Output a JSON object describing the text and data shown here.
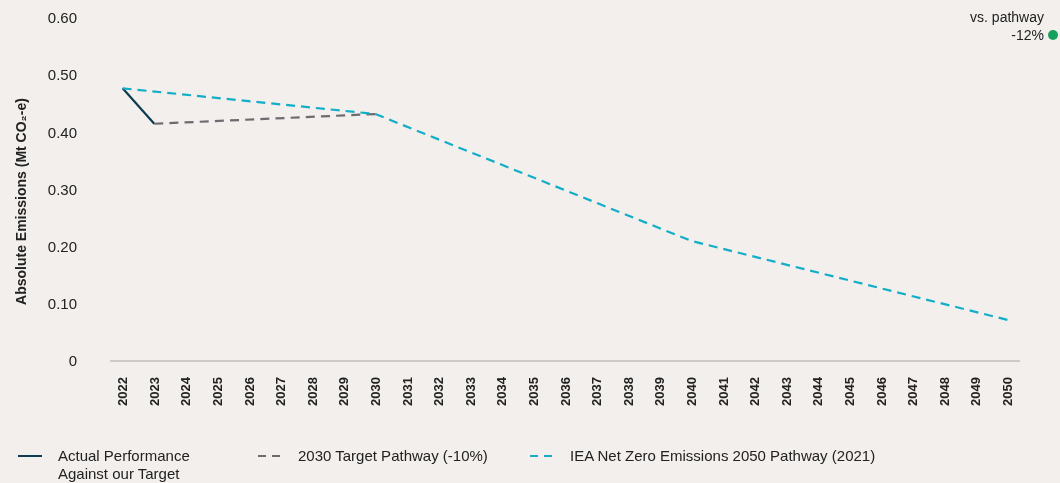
{
  "chart_data": {
    "type": "line",
    "ylabel": "Absolute Emissions (Mt CO₂-e)",
    "xlim": [
      2021.6,
      2050.4
    ],
    "xticks": [
      2022,
      2023,
      2024,
      2025,
      2026,
      2027,
      2028,
      2029,
      2030,
      2031,
      2032,
      2033,
      2034,
      2035,
      2036,
      2037,
      2038,
      2039,
      2040,
      2041,
      2042,
      2043,
      2044,
      2045,
      2046,
      2047,
      2048,
      2049,
      2050
    ],
    "ylim": [
      0,
      0.6
    ],
    "yticks": [
      {
        "value": 0,
        "label": "0"
      },
      {
        "value": 0.1,
        "label": "0.10"
      },
      {
        "value": 0.2,
        "label": "0.20"
      },
      {
        "value": 0.3,
        "label": "0.30"
      },
      {
        "value": 0.4,
        "label": "0.40"
      },
      {
        "value": 0.5,
        "label": "0.50"
      },
      {
        "value": 0.6,
        "label": "0.60"
      }
    ],
    "grid": false,
    "legend": "bottom left",
    "marker": "none",
    "annotations": [
      "vs. pathway",
      "-12%"
    ],
    "series": [
      {
        "name": "Actual Performance Against our Target",
        "color": "#0e3a52",
        "line_style": "solid",
        "x": [
          2022,
          2023
        ],
        "values": [
          0.477,
          0.415
        ]
      },
      {
        "name": "2030 Target Pathway (-10%)",
        "color": "#6d6b70",
        "line_style": "dashed",
        "x": [
          2023,
          2030
        ],
        "values": [
          0.415,
          0.432
        ]
      },
      {
        "name": "IEA Net Zero Emissions 2050 Pathway (2021)",
        "color": "#12aec8",
        "line_style": "dashed",
        "x": [
          2022,
          2030,
          2040,
          2050
        ],
        "values": [
          0.477,
          0.432,
          0.21,
          0.072
        ]
      }
    ]
  }
}
